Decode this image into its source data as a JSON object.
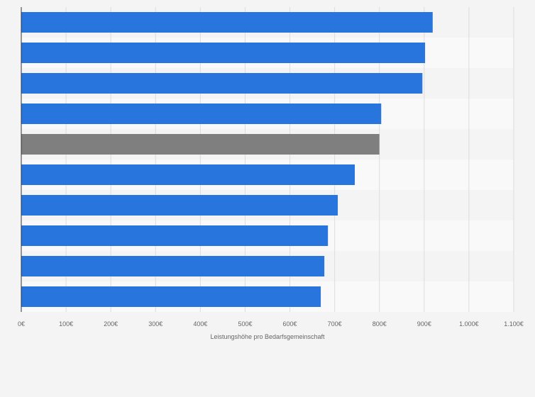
{
  "chart_data": {
    "type": "bar",
    "orientation": "horizontal",
    "title": "",
    "xlabel": "Leistungshöhe pro Bedarfsgemeinschaft",
    "ylabel": "",
    "categories": [
      "",
      "",
      "",
      "",
      "",
      "",
      "",
      "",
      "",
      ""
    ],
    "values": [
      919,
      902,
      896,
      804,
      800,
      745,
      707,
      685,
      677,
      669
    ],
    "highlighted_index": 4,
    "xlim": [
      0,
      1100
    ],
    "xticks": [
      0,
      100,
      200,
      300,
      400,
      500,
      600,
      700,
      800,
      900,
      1000,
      1100
    ],
    "xtick_labels": [
      "0€",
      "100€",
      "200€",
      "300€",
      "400€",
      "500€",
      "600€",
      "700€",
      "800€",
      "900€",
      "1.000€",
      "1.100€"
    ],
    "grid": true,
    "legend": "none",
    "colors": {
      "bar": "#2876dd",
      "highlight": "#7f7f7f",
      "background": "#f4f4f4",
      "band": "#f9f9f9",
      "grid": "#dddddd",
      "axis": "#333333"
    }
  }
}
